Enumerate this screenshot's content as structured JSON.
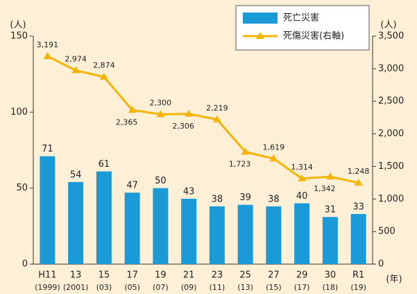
{
  "chart_data": {
    "type": "bar_line",
    "y_unit": "(人)",
    "y2_unit": "(人)",
    "x_unit": "(年)",
    "categories": [
      "H11",
      "13",
      "15",
      "17",
      "19",
      "21",
      "23",
      "25",
      "27",
      "29",
      "30",
      "R1"
    ],
    "category_years": [
      "(1999)",
      "(2001)",
      "(03)",
      "(05)",
      "(07)",
      "(09)",
      "(11)",
      "(13)",
      "(15)",
      "(17)",
      "(18)",
      "(19)"
    ],
    "series": [
      {
        "name": "死亡災害",
        "color": "#1a9ad6",
        "kind": "bar",
        "values": [
          71,
          54,
          61,
          47,
          50,
          43,
          38,
          39,
          38,
          40,
          31,
          33
        ]
      },
      {
        "name": "死傷災害(右軸)",
        "color": "#f5b400",
        "kind": "line",
        "axis": "y2",
        "values": [
          3191,
          2974,
          2874,
          2365,
          2300,
          2306,
          2219,
          1723,
          1619,
          1314,
          1342,
          1248
        ],
        "value_labels": [
          "3,191",
          "2,974",
          "2,874",
          "2,365",
          "2,300",
          "2,306",
          "2,219",
          "1,723",
          "1,619",
          "1,314",
          "1,342",
          "1,248"
        ]
      }
    ],
    "ylim": [
      0,
      150
    ],
    "yticks": [
      0,
      50,
      100,
      150
    ],
    "y2lim": [
      0,
      3500
    ],
    "y2ticks": [
      0,
      500,
      {
        "value": 1000,
        "label": "1,000"
      },
      {
        "value": 1500,
        "label": "1,500"
      },
      {
        "value": 2000,
        "label": "2,000"
      },
      {
        "value": 2500,
        "label": "2,500"
      },
      {
        "value": 3000,
        "label": "3,000"
      },
      {
        "value": 3500,
        "label": "3,500"
      }
    ]
  }
}
